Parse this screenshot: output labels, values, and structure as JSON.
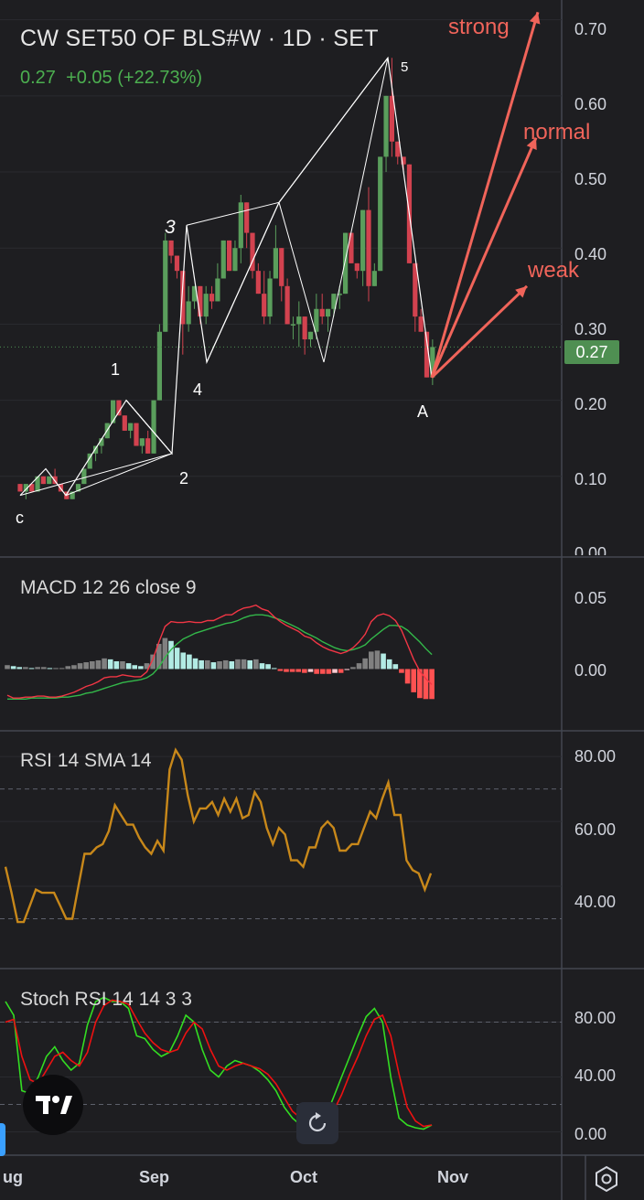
{
  "header": {
    "title": "CW SET50 OF BLS#W · 1D · SET",
    "last_price": "0.27",
    "change": "+0.05",
    "change_pct": "(+22.73%)"
  },
  "price_badge": "0.27",
  "x_axis": {
    "ticks": [
      "ug",
      "Sep",
      "Oct",
      "Nov"
    ]
  },
  "panes": {
    "price": {
      "ticks": [
        "0.70",
        "0.60",
        "0.50",
        "0.40",
        "0.30",
        "0.20",
        "0.10",
        "0.00"
      ]
    },
    "macd": {
      "label": "MACD 12 26 close 9",
      "ticks": [
        "0.05",
        "0.00"
      ]
    },
    "rsi": {
      "label": "RSI 14 SMA 14",
      "ticks": [
        "80.00",
        "60.00",
        "40.00"
      ]
    },
    "stoch": {
      "label": "Stoch RSI 14 14 3 3",
      "ticks": [
        "80.00",
        "40.00",
        "0.00"
      ]
    }
  },
  "wave_labels": [
    "c",
    "1",
    "2",
    "3",
    "4",
    "5",
    "A"
  ],
  "outlook_labels": [
    "strong",
    "normal",
    "weak"
  ],
  "colors": {
    "up": "#5a9e5c",
    "down": "#d2424f",
    "rsi": "#c8881a",
    "macd": "#f23645",
    "signal": "#33b84a",
    "stoch_k": "#33dd22",
    "stoch_d": "#ee1111",
    "projection": "#f0645a",
    "hist_pos_strong": "#b2ebe4",
    "hist_pos_weak": "#808080",
    "hist_neg_strong": "#ff5252",
    "hist_neg_weak": "#ffcdd2"
  },
  "chart_data": [
    {
      "type": "candlestick",
      "title": "CW SET50 OF BLS#W · 1D · SET",
      "x_ticks": [
        "ug",
        "Sep",
        "Oct",
        "Nov"
      ],
      "ylim": [
        0,
        0.72
      ],
      "last": 0.27,
      "ohlc": [
        [
          0.09,
          0.09,
          0.08,
          0.08
        ],
        [
          0.08,
          0.09,
          0.07,
          0.09
        ],
        [
          0.09,
          0.09,
          0.08,
          0.08
        ],
        [
          0.08,
          0.1,
          0.08,
          0.1
        ],
        [
          0.1,
          0.1,
          0.09,
          0.09
        ],
        [
          0.09,
          0.1,
          0.09,
          0.1
        ],
        [
          0.1,
          0.11,
          0.09,
          0.09
        ],
        [
          0.09,
          0.09,
          0.08,
          0.08
        ],
        [
          0.08,
          0.08,
          0.07,
          0.07
        ],
        [
          0.07,
          0.08,
          0.07,
          0.08
        ],
        [
          0.08,
          0.09,
          0.08,
          0.09
        ],
        [
          0.09,
          0.11,
          0.09,
          0.11
        ],
        [
          0.11,
          0.13,
          0.11,
          0.13
        ],
        [
          0.13,
          0.14,
          0.12,
          0.14
        ],
        [
          0.14,
          0.15,
          0.13,
          0.15
        ],
        [
          0.15,
          0.17,
          0.15,
          0.17
        ],
        [
          0.17,
          0.2,
          0.17,
          0.2
        ],
        [
          0.2,
          0.2,
          0.18,
          0.18
        ],
        [
          0.18,
          0.18,
          0.16,
          0.16
        ],
        [
          0.16,
          0.17,
          0.15,
          0.17
        ],
        [
          0.17,
          0.17,
          0.14,
          0.14
        ],
        [
          0.14,
          0.15,
          0.13,
          0.15
        ],
        [
          0.15,
          0.16,
          0.13,
          0.13
        ],
        [
          0.13,
          0.2,
          0.13,
          0.2
        ],
        [
          0.2,
          0.3,
          0.2,
          0.29
        ],
        [
          0.29,
          0.42,
          0.29,
          0.41
        ],
        [
          0.41,
          0.41,
          0.38,
          0.39
        ],
        [
          0.39,
          0.39,
          0.36,
          0.37
        ],
        [
          0.37,
          0.37,
          0.26,
          0.3
        ],
        [
          0.3,
          0.35,
          0.29,
          0.33
        ],
        [
          0.33,
          0.35,
          0.32,
          0.35
        ],
        [
          0.35,
          0.35,
          0.3,
          0.31
        ],
        [
          0.31,
          0.35,
          0.3,
          0.34
        ],
        [
          0.34,
          0.35,
          0.32,
          0.33
        ],
        [
          0.33,
          0.38,
          0.33,
          0.36
        ],
        [
          0.36,
          0.41,
          0.36,
          0.41
        ],
        [
          0.41,
          0.41,
          0.37,
          0.37
        ],
        [
          0.37,
          0.41,
          0.37,
          0.4
        ],
        [
          0.4,
          0.47,
          0.38,
          0.46
        ],
        [
          0.46,
          0.46,
          0.4,
          0.42
        ],
        [
          0.42,
          0.42,
          0.36,
          0.37
        ],
        [
          0.37,
          0.38,
          0.34,
          0.34
        ],
        [
          0.34,
          0.37,
          0.3,
          0.31
        ],
        [
          0.31,
          0.37,
          0.3,
          0.36
        ],
        [
          0.36,
          0.43,
          0.36,
          0.4
        ],
        [
          0.4,
          0.4,
          0.33,
          0.35
        ],
        [
          0.35,
          0.36,
          0.3,
          0.3
        ],
        [
          0.3,
          0.31,
          0.28,
          0.3
        ],
        [
          0.3,
          0.33,
          0.27,
          0.31
        ],
        [
          0.31,
          0.31,
          0.26,
          0.28
        ],
        [
          0.28,
          0.29,
          0.27,
          0.29
        ],
        [
          0.29,
          0.34,
          0.28,
          0.32
        ],
        [
          0.32,
          0.34,
          0.3,
          0.31
        ],
        [
          0.31,
          0.32,
          0.29,
          0.32
        ],
        [
          0.32,
          0.34,
          0.31,
          0.34
        ],
        [
          0.34,
          0.35,
          0.32,
          0.34
        ],
        [
          0.34,
          0.42,
          0.34,
          0.42
        ],
        [
          0.42,
          0.42,
          0.38,
          0.38
        ],
        [
          0.38,
          0.38,
          0.36,
          0.37
        ],
        [
          0.37,
          0.45,
          0.35,
          0.45
        ],
        [
          0.45,
          0.48,
          0.33,
          0.35
        ],
        [
          0.35,
          0.38,
          0.35,
          0.37
        ],
        [
          0.37,
          0.52,
          0.37,
          0.52
        ],
        [
          0.52,
          0.6,
          0.5,
          0.6
        ],
        [
          0.6,
          0.65,
          0.52,
          0.54
        ],
        [
          0.54,
          0.54,
          0.51,
          0.52
        ],
        [
          0.52,
          0.52,
          0.5,
          0.51
        ],
        [
          0.51,
          0.51,
          0.38,
          0.38
        ],
        [
          0.38,
          0.38,
          0.29,
          0.31
        ],
        [
          0.31,
          0.32,
          0.29,
          0.29
        ],
        [
          0.29,
          0.29,
          0.23,
          0.23
        ],
        [
          0.23,
          0.28,
          0.22,
          0.27
        ]
      ],
      "wave_points": {
        "c": 0.075,
        "1": 0.2,
        "2": 0.13,
        "3": 0.43,
        "4": 0.25,
        "5": 0.65,
        "A": 0.23
      }
    },
    {
      "type": "line",
      "title": "MACD 12 26 close 9",
      "ylim": [
        -0.06,
        0.11
      ],
      "series": [
        {
          "name": "macd",
          "values": [
            -0.027,
            -0.03,
            -0.03,
            -0.029,
            -0.029,
            -0.028,
            -0.028,
            -0.029,
            -0.029,
            -0.028,
            -0.026,
            -0.024,
            -0.021,
            -0.018,
            -0.016,
            -0.013,
            -0.009,
            -0.008,
            -0.008,
            -0.006,
            -0.007,
            -0.008,
            -0.008,
            -0.003,
            0.01,
            0.028,
            0.044,
            0.049,
            0.048,
            0.048,
            0.049,
            0.048,
            0.048,
            0.05,
            0.05,
            0.053,
            0.056,
            0.056,
            0.06,
            0.063,
            0.064,
            0.066,
            0.062,
            0.06,
            0.054,
            0.049,
            0.045,
            0.042,
            0.039,
            0.034,
            0.032,
            0.027,
            0.023,
            0.02,
            0.018,
            0.016,
            0.018,
            0.022,
            0.028,
            0.036,
            0.049,
            0.055,
            0.057,
            0.055,
            0.05,
            0.04,
            0.025,
            0.01,
            -0.002,
            -0.01,
            -0.016
          ]
        },
        {
          "name": "signal",
          "values": [
            -0.031,
            -0.031,
            -0.031,
            -0.031,
            -0.03,
            -0.03,
            -0.03,
            -0.03,
            -0.03,
            -0.029,
            -0.029,
            -0.028,
            -0.027,
            -0.025,
            -0.024,
            -0.022,
            -0.02,
            -0.018,
            -0.016,
            -0.014,
            -0.013,
            -0.012,
            -0.011,
            -0.009,
            -0.005,
            0.002,
            0.012,
            0.02,
            0.026,
            0.031,
            0.034,
            0.037,
            0.039,
            0.041,
            0.043,
            0.045,
            0.047,
            0.048,
            0.05,
            0.053,
            0.055,
            0.056,
            0.056,
            0.055,
            0.053,
            0.051,
            0.048,
            0.045,
            0.042,
            0.038,
            0.035,
            0.032,
            0.028,
            0.025,
            0.022,
            0.02,
            0.019,
            0.02,
            0.022,
            0.025,
            0.031,
            0.036,
            0.041,
            0.045,
            0.045,
            0.044,
            0.04,
            0.034,
            0.028,
            0.021,
            0.015
          ]
        },
        {
          "name": "histogram",
          "values": [
            0.004,
            0.003,
            0.002,
            0.002,
            0.001,
            0.002,
            0.002,
            0.001,
            0.001,
            0.001,
            0.003,
            0.004,
            0.006,
            0.007,
            0.008,
            0.009,
            0.011,
            0.01,
            0.008,
            0.008,
            0.006,
            0.004,
            0.003,
            0.006,
            0.015,
            0.026,
            0.032,
            0.029,
            0.022,
            0.017,
            0.015,
            0.011,
            0.009,
            0.009,
            0.007,
            0.008,
            0.009,
            0.008,
            0.01,
            0.01,
            0.009,
            0.01,
            0.006,
            0.005,
            0.001,
            -0.002,
            -0.003,
            -0.003,
            -0.003,
            -0.004,
            -0.003,
            -0.005,
            -0.005,
            -0.005,
            -0.004,
            -0.004,
            -0.001,
            0.002,
            0.006,
            0.011,
            0.018,
            0.019,
            0.016,
            0.01,
            0.005,
            -0.004,
            -0.015,
            -0.024,
            -0.03,
            -0.031,
            -0.031
          ]
        }
      ]
    },
    {
      "type": "line",
      "title": "RSI 14 SMA 14",
      "ylim": [
        20,
        82
      ],
      "bands": [
        70,
        30
      ],
      "series": [
        {
          "name": "rsi",
          "values": [
            46,
            38,
            29,
            29,
            34,
            39,
            38,
            38,
            38,
            34,
            30,
            30,
            40,
            50,
            50,
            52,
            53,
            57,
            65,
            62,
            59,
            59,
            55,
            52,
            50,
            54,
            51,
            76,
            82,
            79,
            68,
            60,
            64,
            64,
            66,
            62,
            67,
            63,
            67,
            61,
            62,
            69,
            66,
            58,
            53,
            58,
            56,
            48,
            48,
            46,
            52,
            52,
            58,
            60,
            58,
            51,
            51,
            53,
            53,
            58,
            63,
            61,
            67,
            72,
            62,
            62,
            48,
            45,
            44,
            39,
            44
          ]
        }
      ]
    },
    {
      "type": "line",
      "title": "Stoch RSI 14 14 3 3",
      "ylim": [
        -5,
        105
      ],
      "bands": [
        80,
        20
      ],
      "series": [
        {
          "name": "k",
          "values": [
            95,
            85,
            30,
            28,
            40,
            55,
            62,
            52,
            45,
            50,
            78,
            95,
            98,
            95,
            95,
            90,
            70,
            68,
            60,
            55,
            58,
            70,
            85,
            80,
            60,
            45,
            40,
            48,
            52,
            50,
            48,
            44,
            38,
            30,
            18,
            10,
            5,
            3,
            3,
            10,
            25,
            40,
            55,
            70,
            84,
            90,
            80,
            40,
            10,
            5,
            3,
            2,
            5
          ]
        },
        {
          "name": "d",
          "values": [
            80,
            82,
            55,
            38,
            35,
            45,
            55,
            58,
            52,
            48,
            58,
            80,
            92,
            96,
            95,
            93,
            82,
            72,
            65,
            60,
            58,
            60,
            72,
            80,
            75,
            60,
            48,
            45,
            48,
            50,
            48,
            46,
            42,
            35,
            25,
            15,
            10,
            6,
            5,
            8,
            15,
            27,
            42,
            55,
            70,
            82,
            85,
            70,
            42,
            18,
            8,
            4,
            5
          ]
        }
      ]
    }
  ]
}
